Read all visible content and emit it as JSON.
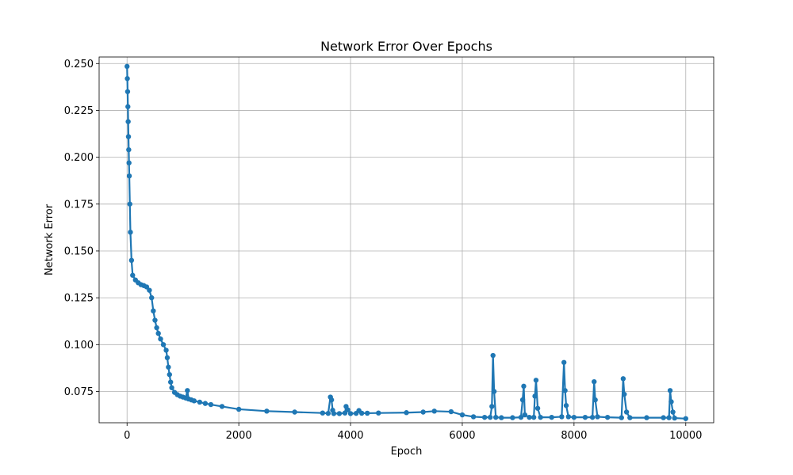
{
  "chart_data": {
    "type": "line",
    "title": "Network Error Over Epochs",
    "xlabel": "Epoch",
    "ylabel": "Network Error",
    "xlim": [
      -500,
      10500
    ],
    "ylim": [
      0.0583,
      0.2535
    ],
    "xticks": [
      0,
      2000,
      4000,
      6000,
      8000,
      10000
    ],
    "xtick_labels": [
      "0",
      "2000",
      "4000",
      "6000",
      "8000",
      "10000"
    ],
    "yticks": [
      0.075,
      0.1,
      0.125,
      0.15,
      0.175,
      0.2,
      0.225,
      0.25
    ],
    "ytick_labels": [
      "0.075",
      "0.100",
      "0.125",
      "0.150",
      "0.175",
      "0.200",
      "0.225",
      "0.250"
    ],
    "grid": true,
    "marker": "circle",
    "series": [
      {
        "name": "Network Error",
        "color": "#1f77b4",
        "x": [
          0,
          5,
          10,
          15,
          20,
          25,
          30,
          35,
          40,
          50,
          60,
          80,
          100,
          150,
          200,
          250,
          300,
          350,
          400,
          440,
          470,
          500,
          530,
          560,
          600,
          650,
          700,
          720,
          740,
          760,
          780,
          800,
          850,
          900,
          950,
          1000,
          1050,
          1080,
          1100,
          1150,
          1200,
          1300,
          1400,
          1500,
          1700,
          2000,
          2500,
          3000,
          3500,
          3600,
          3640,
          3660,
          3680,
          3700,
          3800,
          3900,
          3920,
          3950,
          4000,
          4100,
          4150,
          4200,
          4300,
          4500,
          5000,
          5300,
          5500,
          5800,
          6000,
          6200,
          6400,
          6500,
          6530,
          6550,
          6570,
          6600,
          6700,
          6900,
          7050,
          7080,
          7100,
          7120,
          7200,
          7280,
          7300,
          7320,
          7350,
          7400,
          7600,
          7780,
          7820,
          7840,
          7860,
          7900,
          8000,
          8200,
          8330,
          8360,
          8380,
          8420,
          8600,
          8850,
          8880,
          8900,
          8940,
          9000,
          9300,
          9600,
          9700,
          9720,
          9740,
          9770,
          9800,
          10000
        ],
        "values": [
          0.2485,
          0.242,
          0.235,
          0.227,
          0.219,
          0.211,
          0.204,
          0.197,
          0.19,
          0.175,
          0.16,
          0.145,
          0.137,
          0.1345,
          0.133,
          0.132,
          0.1315,
          0.1308,
          0.129,
          0.125,
          0.118,
          0.113,
          0.109,
          0.106,
          0.103,
          0.1,
          0.097,
          0.093,
          0.088,
          0.084,
          0.08,
          0.077,
          0.0745,
          0.0733,
          0.0725,
          0.072,
          0.0715,
          0.0755,
          0.071,
          0.0705,
          0.07,
          0.0693,
          0.0686,
          0.068,
          0.067,
          0.0655,
          0.0645,
          0.064,
          0.0635,
          0.0633,
          0.072,
          0.0705,
          0.065,
          0.0632,
          0.0632,
          0.0635,
          0.067,
          0.0652,
          0.0632,
          0.0633,
          0.0648,
          0.0634,
          0.0634,
          0.0635,
          0.0637,
          0.064,
          0.0645,
          0.0642,
          0.0625,
          0.0615,
          0.0612,
          0.0612,
          0.067,
          0.0942,
          0.075,
          0.0612,
          0.061,
          0.061,
          0.0612,
          0.0705,
          0.0778,
          0.0625,
          0.0612,
          0.0612,
          0.0725,
          0.081,
          0.066,
          0.0612,
          0.0612,
          0.0615,
          0.0905,
          0.0755,
          0.0675,
          0.0615,
          0.0612,
          0.0612,
          0.0612,
          0.0802,
          0.0705,
          0.0615,
          0.0612,
          0.061,
          0.0818,
          0.0735,
          0.064,
          0.061,
          0.061,
          0.061,
          0.061,
          0.0755,
          0.0695,
          0.064,
          0.0608,
          0.0605
        ]
      }
    ]
  }
}
